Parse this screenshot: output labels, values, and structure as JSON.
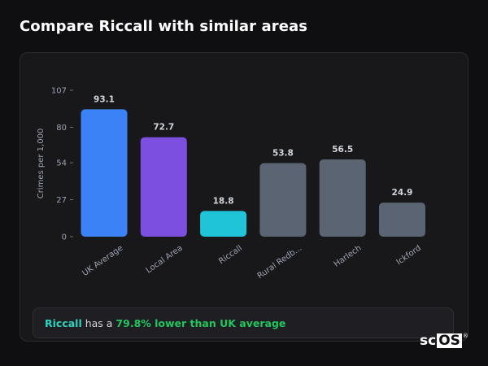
{
  "title": "Compare Riccall with similar areas",
  "chart_data": {
    "type": "bar",
    "ylabel": "Crimes per 1,000",
    "xlabel": "",
    "ylim": [
      0,
      107
    ],
    "yticks": [
      0,
      27,
      54,
      80,
      107
    ],
    "grid": false,
    "categories": [
      "UK Average",
      "Local Area",
      "Riccall",
      "Rural Redb...",
      "Harlech",
      "Ickford"
    ],
    "values": [
      93.1,
      72.7,
      18.8,
      53.8,
      56.5,
      24.9
    ],
    "value_labels": [
      "93.1",
      "72.7",
      "18.8",
      "53.8",
      "56.5",
      "24.9"
    ],
    "colors": [
      "#3b82f6",
      "#7c4fe0",
      "#1fc4d8",
      "#5b6472",
      "#5b6472",
      "#5b6472"
    ]
  },
  "summary": {
    "area": "Riccall",
    "middle": " has a ",
    "stat": "79.8% lower than UK average"
  },
  "logo": {
    "prefix": "sc",
    "boxed": "OS",
    "mark": "®"
  },
  "colors": {
    "background": "#0f0f12",
    "card": "#18181b",
    "highlight": "#2dd4bf",
    "positive": "#22c55e"
  }
}
